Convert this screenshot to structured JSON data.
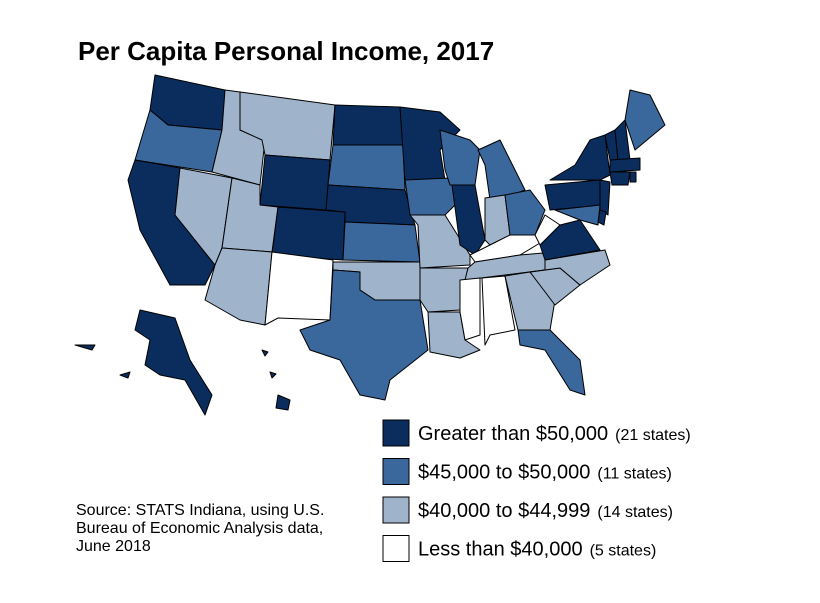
{
  "title": "Per Capita Personal Income, 2017",
  "legend": [
    {
      "label": "Greater than $50,000",
      "count": "(21 states)",
      "color": "#0b2d5e"
    },
    {
      "label": "$45,000 to $50,000",
      "count": "(11 states)",
      "color": "#3a679c"
    },
    {
      "label": "$40,000 to $44,999",
      "count": "(14 states)",
      "color": "#9fb3cb"
    },
    {
      "label": "Less than $40,000",
      "count": "(5 states)",
      "color": "#ffffff"
    }
  ],
  "source": [
    "Source: STATS Indiana, using U.S.",
    "Bureau of Economic Analysis data,",
    "June 2018"
  ]
}
